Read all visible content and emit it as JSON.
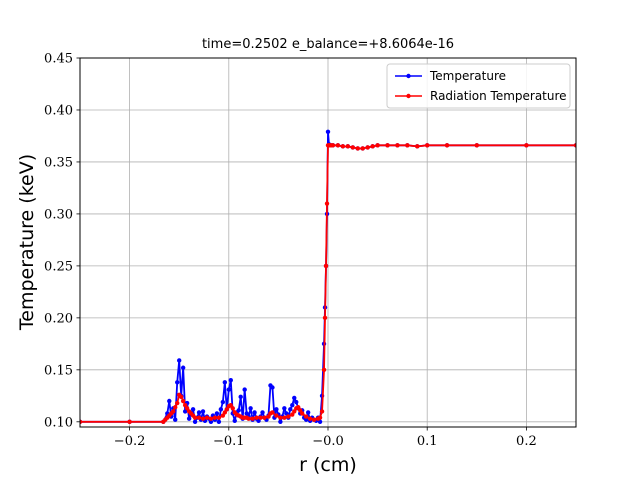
{
  "chart_data": {
    "type": "line",
    "title": "time=0.2502 e_balance=+8.6064e-16",
    "xlabel": "r (cm)",
    "ylabel": "Temperature (keV)",
    "xlim": [
      -0.25,
      0.25
    ],
    "ylim": [
      0.095,
      0.45
    ],
    "xticks": [
      -0.2,
      -0.1,
      0.0,
      0.1,
      0.2
    ],
    "xtick_labels": [
      "−0.2",
      "−0.1",
      "−0.0",
      "0.1",
      "0.2"
    ],
    "yticks": [
      0.1,
      0.15,
      0.2,
      0.25,
      0.3,
      0.35,
      0.4,
      0.45
    ],
    "ytick_labels": [
      "0.10",
      "0.15",
      "0.20",
      "0.25",
      "0.30",
      "0.35",
      "0.40",
      "0.45"
    ],
    "grid": true,
    "legend_position": "top-right",
    "series": [
      {
        "name": "Temperature",
        "color": "#0000ff",
        "x": [
          -0.25,
          -0.2,
          -0.166,
          -0.162,
          -0.16,
          -0.158,
          -0.156,
          -0.154,
          -0.152,
          -0.15,
          -0.148,
          -0.146,
          -0.144,
          -0.142,
          -0.14,
          -0.138,
          -0.136,
          -0.134,
          -0.132,
          -0.13,
          -0.128,
          -0.126,
          -0.124,
          -0.122,
          -0.12,
          -0.118,
          -0.116,
          -0.114,
          -0.112,
          -0.11,
          -0.108,
          -0.106,
          -0.104,
          -0.102,
          -0.1,
          -0.098,
          -0.096,
          -0.094,
          -0.092,
          -0.09,
          -0.088,
          -0.086,
          -0.084,
          -0.082,
          -0.08,
          -0.078,
          -0.076,
          -0.074,
          -0.072,
          -0.07,
          -0.068,
          -0.066,
          -0.064,
          -0.062,
          -0.06,
          -0.058,
          -0.056,
          -0.054,
          -0.052,
          -0.05,
          -0.048,
          -0.046,
          -0.044,
          -0.042,
          -0.04,
          -0.038,
          -0.036,
          -0.034,
          -0.032,
          -0.03,
          -0.028,
          -0.026,
          -0.024,
          -0.022,
          -0.02,
          -0.018,
          -0.016,
          -0.014,
          -0.012,
          -0.01,
          -0.008,
          -0.006,
          -0.004,
          -0.003,
          -0.002,
          -0.001,
          0.0,
          0.001,
          0.002,
          0.003,
          0.005,
          0.01,
          0.015,
          0.02,
          0.025,
          0.03,
          0.035,
          0.04,
          0.045,
          0.05,
          0.06,
          0.07,
          0.08,
          0.09,
          0.1,
          0.12,
          0.15,
          0.2,
          0.25
        ],
        "y": [
          0.1,
          0.1,
          0.1,
          0.108,
          0.12,
          0.105,
          0.113,
          0.102,
          0.138,
          0.159,
          0.125,
          0.152,
          0.11,
          0.118,
          0.103,
          0.108,
          0.112,
          0.1,
          0.104,
          0.109,
          0.102,
          0.11,
          0.101,
          0.105,
          0.103,
          0.1,
          0.106,
          0.102,
          0.108,
          0.1,
          0.112,
          0.119,
          0.138,
          0.112,
          0.131,
          0.14,
          0.108,
          0.101,
          0.109,
          0.111,
          0.124,
          0.103,
          0.131,
          0.108,
          0.105,
          0.113,
          0.102,
          0.109,
          0.103,
          0.101,
          0.105,
          0.109,
          0.104,
          0.102,
          0.106,
          0.135,
          0.133,
          0.104,
          0.112,
          0.107,
          0.1,
          0.105,
          0.113,
          0.108,
          0.104,
          0.112,
          0.116,
          0.123,
          0.119,
          0.113,
          0.108,
          0.111,
          0.104,
          0.102,
          0.109,
          0.101,
          0.104,
          0.102,
          0.101,
          0.104,
          0.1,
          0.125,
          0.175,
          0.21,
          0.25,
          0.3,
          0.379,
          0.367,
          0.366,
          0.366,
          0.366,
          0.366,
          0.365,
          0.365,
          0.364,
          0.363,
          0.363,
          0.364,
          0.365,
          0.366,
          0.366,
          0.366,
          0.366,
          0.365,
          0.366,
          0.366,
          0.366,
          0.366,
          0.366
        ]
      },
      {
        "name": "Radiation Temperature",
        "color": "#ff0000",
        "x": [
          -0.25,
          -0.2,
          -0.166,
          -0.164,
          -0.162,
          -0.16,
          -0.158,
          -0.156,
          -0.154,
          -0.152,
          -0.15,
          -0.148,
          -0.146,
          -0.144,
          -0.142,
          -0.14,
          -0.138,
          -0.136,
          -0.134,
          -0.13,
          -0.126,
          -0.122,
          -0.118,
          -0.114,
          -0.11,
          -0.106,
          -0.104,
          -0.102,
          -0.1,
          -0.098,
          -0.096,
          -0.094,
          -0.092,
          -0.09,
          -0.088,
          -0.086,
          -0.084,
          -0.082,
          -0.08,
          -0.076,
          -0.072,
          -0.068,
          -0.064,
          -0.06,
          -0.058,
          -0.056,
          -0.052,
          -0.048,
          -0.044,
          -0.04,
          -0.036,
          -0.034,
          -0.032,
          -0.03,
          -0.028,
          -0.026,
          -0.022,
          -0.018,
          -0.014,
          -0.01,
          -0.008,
          -0.006,
          -0.004,
          -0.003,
          -0.002,
          -0.001,
          0.0,
          0.001,
          0.002,
          0.003,
          0.005,
          0.01,
          0.015,
          0.02,
          0.025,
          0.03,
          0.035,
          0.04,
          0.045,
          0.05,
          0.06,
          0.07,
          0.08,
          0.09,
          0.1,
          0.12,
          0.15,
          0.2,
          0.25
        ],
        "y": [
          0.1,
          0.1,
          0.1,
          0.102,
          0.104,
          0.106,
          0.108,
          0.11,
          0.114,
          0.118,
          0.126,
          0.124,
          0.12,
          0.116,
          0.113,
          0.11,
          0.108,
          0.106,
          0.104,
          0.104,
          0.103,
          0.104,
          0.103,
          0.104,
          0.104,
          0.106,
          0.109,
          0.112,
          0.115,
          0.116,
          0.113,
          0.109,
          0.107,
          0.106,
          0.105,
          0.104,
          0.104,
          0.104,
          0.103,
          0.103,
          0.104,
          0.104,
          0.104,
          0.105,
          0.108,
          0.109,
          0.106,
          0.104,
          0.104,
          0.105,
          0.107,
          0.11,
          0.113,
          0.114,
          0.111,
          0.108,
          0.105,
          0.103,
          0.102,
          0.103,
          0.104,
          0.11,
          0.15,
          0.2,
          0.25,
          0.31,
          0.366,
          0.366,
          0.366,
          0.366,
          0.366,
          0.366,
          0.365,
          0.365,
          0.364,
          0.363,
          0.363,
          0.364,
          0.365,
          0.366,
          0.366,
          0.366,
          0.366,
          0.365,
          0.366,
          0.366,
          0.366,
          0.366,
          0.366
        ]
      }
    ]
  }
}
